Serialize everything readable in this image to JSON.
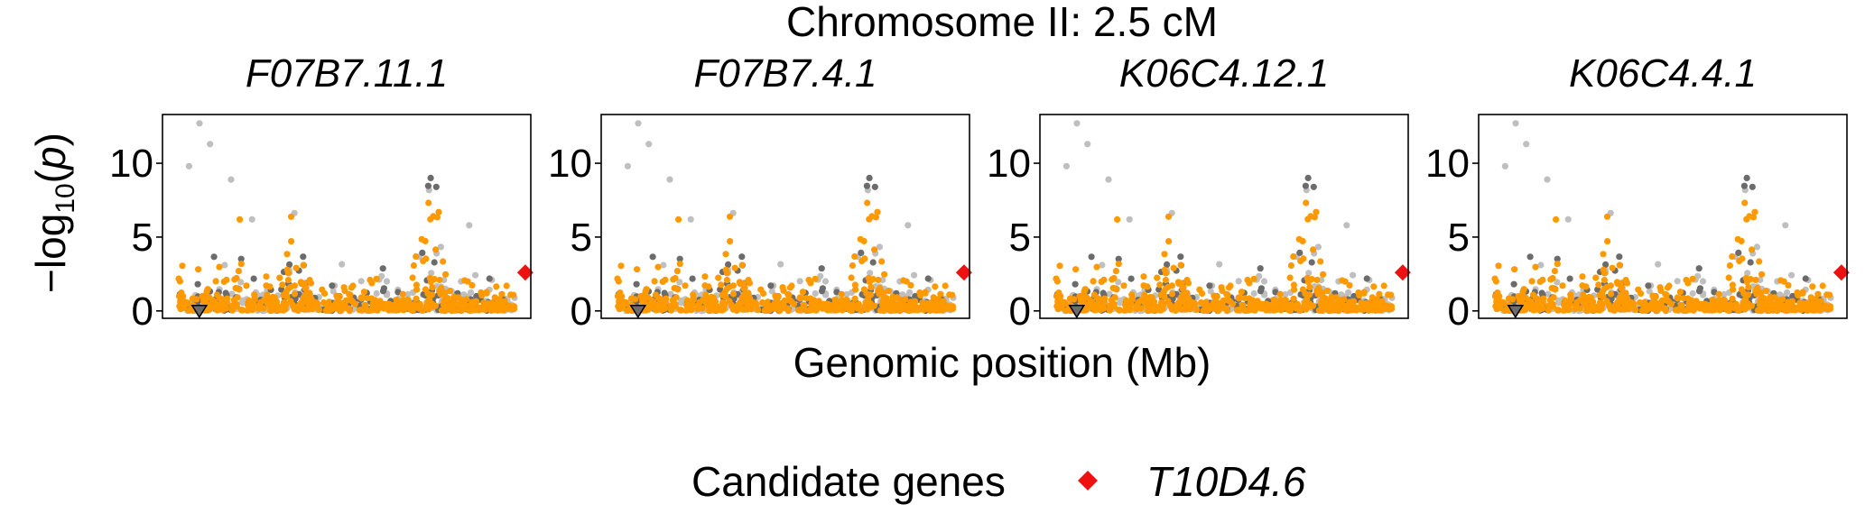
{
  "chart_data": {
    "type": "scatter",
    "title": "Chromosome II: 2.5 cM",
    "xlabel": "Genomic position (Mb)",
    "ylabel": "-log10(p)",
    "ylim": [
      -0.5,
      13.3
    ],
    "yticks": [
      0,
      5,
      10
    ],
    "grid": false,
    "facets": [
      "F07B7.11.1",
      "F07B7.4.1",
      "K06C4.12.1",
      "K06C4.4.1"
    ],
    "point_classes": [
      {
        "class": "background-light",
        "color": "#bfbfbf"
      },
      {
        "class": "background-dark",
        "color": "#6b6b6b"
      },
      {
        "class": "significant",
        "color": "#ff9900"
      }
    ],
    "markers": [
      {
        "gene": "T10D4.6",
        "shape": "diamond",
        "color": "#ee1111",
        "y": 2.6,
        "x_fraction": 0.985
      },
      {
        "label": "",
        "shape": "triangle-down",
        "color": "#6b6b6b",
        "y": 0,
        "x_fraction": 0.1
      }
    ],
    "legend": {
      "title": "Candidate genes",
      "placement": "bottom",
      "entries": [
        {
          "label": "T10D4.6",
          "color": "#ee1111",
          "shape": "diamond"
        }
      ]
    }
  }
}
